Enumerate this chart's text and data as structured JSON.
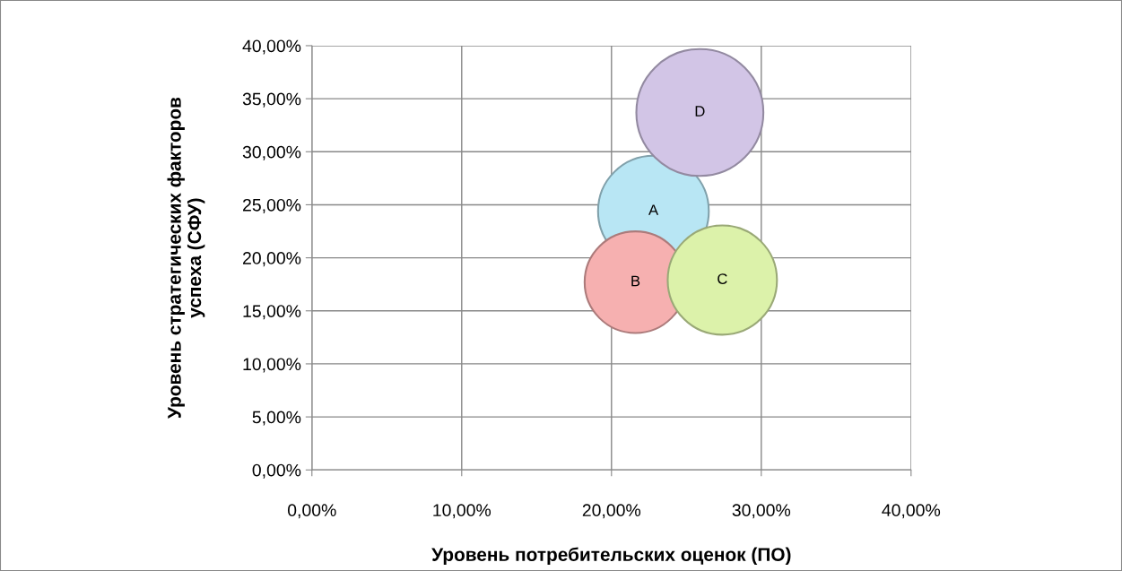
{
  "chart_data": {
    "type": "bubble",
    "xlabel": "Уровень потребительских оценок (ПО)",
    "ylabel": "Уровень стратегических факторов успеха (СФУ)",
    "series": [
      {
        "name": "A",
        "color": "#b8e6f4",
        "x": [
          22.8
        ],
        "values": [
          24.4
        ],
        "sizes": [
          0.76
        ]
      },
      {
        "name": "B",
        "color": "#f6b0b0",
        "x": [
          21.6
        ],
        "values": [
          17.7
        ],
        "sizes": [
          0.64
        ]
      },
      {
        "name": "C",
        "color": "#dcf2aa",
        "x": [
          27.4
        ],
        "values": [
          17.9
        ],
        "sizes": [
          0.74
        ]
      },
      {
        "name": "D",
        "color": "#d2c5e6",
        "x": [
          25.9
        ],
        "values": [
          33.7
        ],
        "sizes": [
          1
        ]
      }
    ],
    "xlim": [
      0,
      40
    ],
    "xticks": [
      {
        "value": 0,
        "label": "0,00%"
      },
      {
        "value": 10,
        "label": "10,00%"
      },
      {
        "value": 20,
        "label": "20,00%"
      },
      {
        "value": 30,
        "label": "30,00%"
      },
      {
        "value": 40,
        "label": "40,00%"
      }
    ],
    "ylim": [
      0,
      40
    ],
    "yticks": [
      {
        "value": 0,
        "label": "0,00%"
      },
      {
        "value": 5,
        "label": "5,00%"
      },
      {
        "value": 10,
        "label": "10,00%"
      },
      {
        "value": 15,
        "label": "15,00%"
      },
      {
        "value": 20,
        "label": "20,00%"
      },
      {
        "value": 25,
        "label": "25,00%"
      },
      {
        "value": 30,
        "label": "30,00%"
      },
      {
        "value": 35,
        "label": "35,00%"
      },
      {
        "value": 40,
        "label": "40,00%"
      }
    ],
    "grid": true,
    "legend": false
  }
}
